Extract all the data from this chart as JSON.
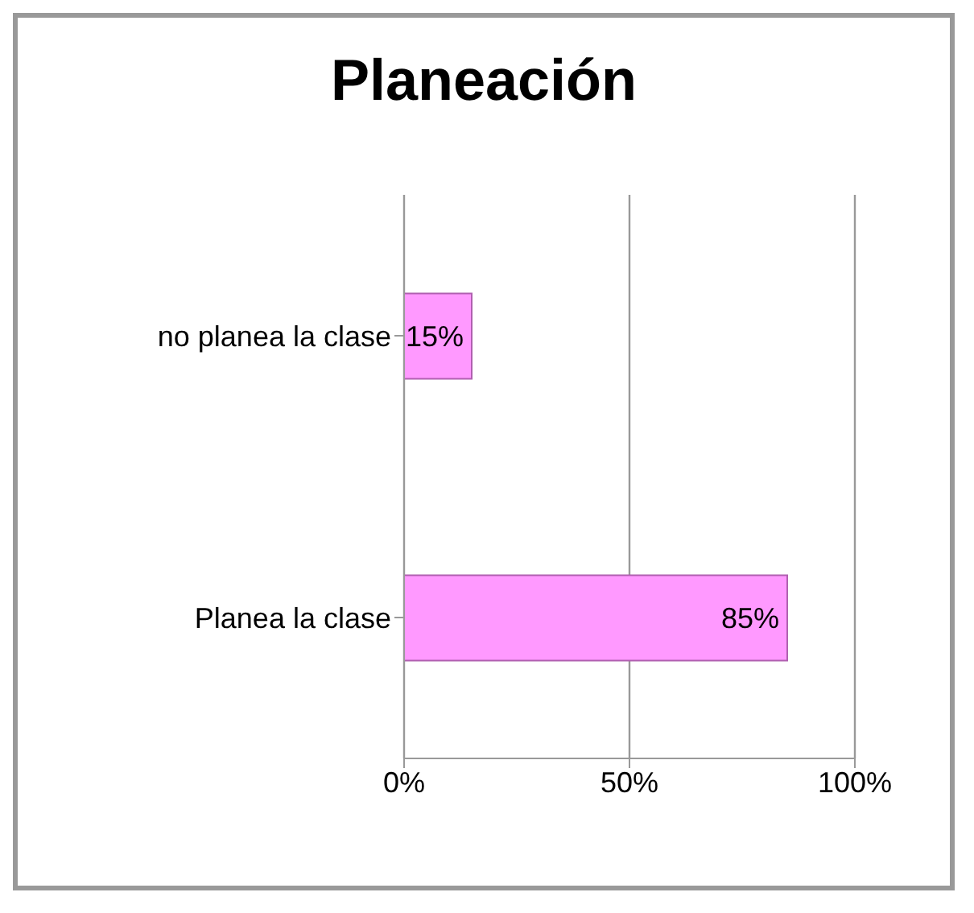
{
  "chart_data": {
    "type": "bar",
    "title": "Planeación",
    "orientation": "horizontal",
    "categories": [
      "no planea la clase",
      "Planea la clase"
    ],
    "values": [
      15,
      85
    ],
    "color": "#ff99ff",
    "value_labels": [
      "15%",
      "85%"
    ],
    "xlim": [
      0,
      100
    ],
    "xticks": [
      {
        "value": 0,
        "label": "0%"
      },
      {
        "value": 50,
        "label": "50%"
      },
      {
        "value": 100,
        "label": "100%"
      }
    ],
    "grid": "x"
  }
}
